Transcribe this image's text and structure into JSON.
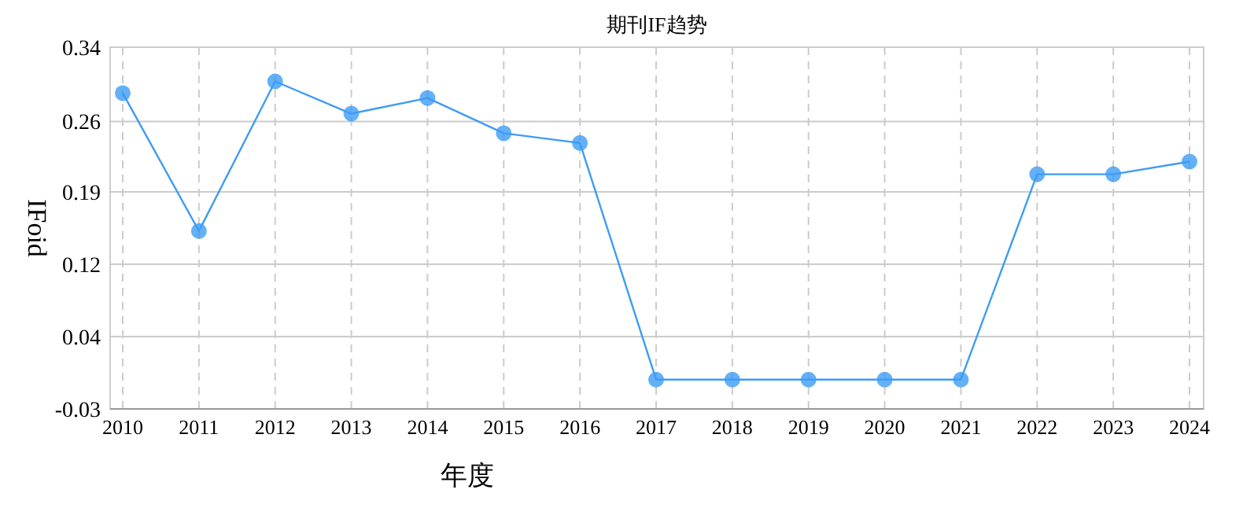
{
  "chart_data": {
    "type": "line",
    "title": "期刊IF趋势",
    "xlabel": "年度",
    "ylabel": "IFoid",
    "categories": [
      "2010",
      "2011",
      "2012",
      "2013",
      "2014",
      "2015",
      "2016",
      "2017",
      "2018",
      "2019",
      "2020",
      "2021",
      "2022",
      "2023",
      "2024"
    ],
    "series": [
      {
        "color": "#3d9cf5",
        "values": [
          0.293,
          0.152,
          0.305,
          0.272,
          0.288,
          0.252,
          0.242,
          0.0,
          0.0,
          0.0,
          0.0,
          0.0,
          0.21,
          0.21,
          0.223
        ]
      }
    ],
    "ylim": [
      -0.03,
      0.34
    ],
    "yticks": [
      -0.03,
      {
        "value": 0.044,
        "label": "0.04"
      },
      {
        "value": 0.118,
        "label": "0.12"
      },
      {
        "value": 0.192,
        "label": "0.19"
      },
      {
        "value": 0.264,
        "label": "0.26"
      },
      0.34
    ],
    "grid": true,
    "marker": "circle",
    "line_style": "solid"
  }
}
